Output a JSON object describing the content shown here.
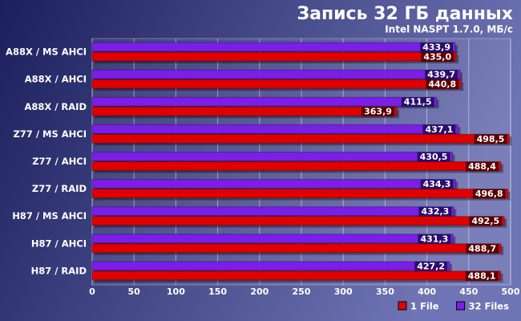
{
  "chart_data": {
    "type": "bar",
    "orientation": "horizontal",
    "title": "Запись 32 ГБ данных",
    "subtitle": "Intel NASPT 1.7.0, МБ/с",
    "categories": [
      "A88X / MS AHCI",
      "A88X / AHCI",
      "A88X / RAID",
      "Z77 / MS AHCI",
      "Z77 / AHCI",
      "Z77 / RAID",
      "H87 / MS AHCI",
      "H87 / AHCI",
      "H87 / RAID"
    ],
    "series": [
      {
        "name": "1 File",
        "color": "#e00000",
        "values": [
          435.0,
          440.8,
          363.9,
          498.5,
          488.4,
          496.8,
          492.5,
          488.7,
          488.1
        ],
        "value_labels": [
          "435,0",
          "440,8",
          "363,9",
          "498,5",
          "488,4",
          "496,8",
          "492,5",
          "488,7",
          "488,1"
        ]
      },
      {
        "name": "32 Files",
        "color": "#7a1ee8",
        "values": [
          433.9,
          439.7,
          411.5,
          437.1,
          430.5,
          434.3,
          432.3,
          431.3,
          427.2
        ],
        "value_labels": [
          "433,9",
          "439,7",
          "411,5",
          "437,1",
          "430,5",
          "434,3",
          "432,3",
          "431,3",
          "427,2"
        ]
      }
    ],
    "xlim": [
      0,
      500
    ],
    "xticks": [
      0,
      50,
      100,
      150,
      200,
      250,
      300,
      350,
      400,
      450,
      500
    ],
    "grid": true,
    "legend": "bottom-right"
  }
}
